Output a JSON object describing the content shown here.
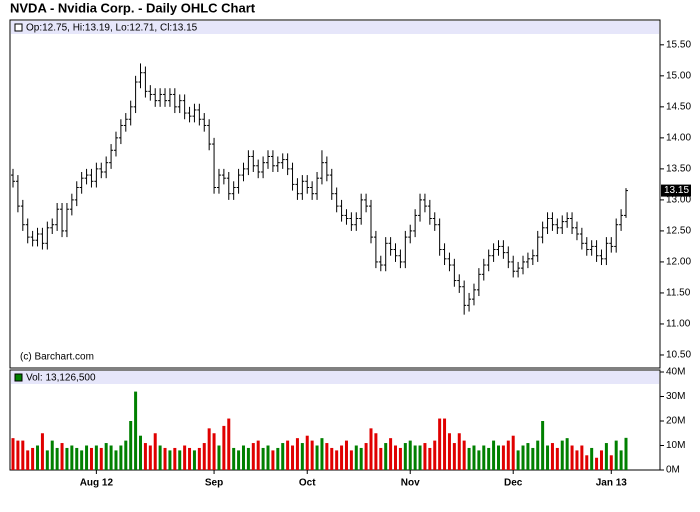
{
  "chart_data": {
    "type": "ohlc",
    "title": "NVDA - Nvidia Corp. - Daily OHLC Chart",
    "subtitle": "Op:12.75, Hi:13.19, Lo:12.71, Cl:13.15",
    "volume_label": "Vol: 13,126,500",
    "watermark": "(c) Barchart.com",
    "categories": [
      null,
      null,
      null,
      null,
      null,
      null,
      null,
      null,
      null,
      null,
      null,
      null,
      null,
      null,
      null,
      null,
      null,
      "Aug 12",
      null,
      null,
      null,
      null,
      null,
      null,
      null,
      null,
      null,
      null,
      null,
      null,
      null,
      null,
      null,
      null,
      null,
      null,
      null,
      null,
      null,
      null,
      null,
      "Sep",
      null,
      null,
      null,
      null,
      null,
      null,
      null,
      null,
      null,
      null,
      null,
      null,
      null,
      null,
      null,
      null,
      null,
      null,
      "Oct",
      null,
      null,
      null,
      null,
      null,
      null,
      null,
      null,
      null,
      null,
      null,
      null,
      null,
      null,
      null,
      null,
      null,
      null,
      null,
      null,
      "Nov",
      null,
      null,
      null,
      null,
      null,
      null,
      null,
      null,
      null,
      null,
      null,
      null,
      null,
      null,
      null,
      null,
      null,
      null,
      null,
      null,
      "Dec",
      null,
      null,
      null,
      null,
      null,
      null,
      null,
      null,
      null,
      null,
      null,
      null,
      null,
      null,
      null,
      null,
      null,
      null,
      null,
      "Jan 13",
      null,
      null,
      null
    ],
    "open": [
      13.4,
      13.3,
      12.9,
      12.6,
      12.4,
      12.35,
      12.45,
      12.3,
      12.55,
      12.6,
      12.85,
      12.5,
      12.85,
      13.0,
      13.2,
      13.35,
      13.4,
      13.3,
      13.5,
      13.45,
      13.6,
      13.8,
      14.0,
      14.2,
      14.3,
      14.5,
      14.9,
      15.05,
      14.75,
      14.7,
      14.6,
      14.7,
      14.6,
      14.7,
      14.5,
      14.6,
      14.4,
      14.35,
      14.45,
      14.3,
      14.2,
      13.9,
      13.2,
      13.4,
      13.35,
      13.1,
      13.2,
      13.4,
      13.5,
      13.7,
      13.55,
      13.45,
      13.6,
      13.7,
      13.55,
      13.6,
      13.65,
      13.5,
      13.25,
      13.1,
      13.3,
      13.2,
      13.1,
      13.35,
      13.6,
      13.4,
      13.1,
      12.9,
      12.75,
      12.7,
      12.6,
      12.7,
      13.0,
      12.9,
      12.4,
      12.0,
      11.95,
      12.3,
      12.2,
      12.1,
      12.0,
      12.4,
      12.5,
      12.75,
      13.0,
      12.9,
      12.7,
      12.6,
      12.2,
      12.05,
      11.95,
      11.7,
      11.6,
      11.3,
      11.4,
      11.55,
      11.8,
      11.95,
      12.1,
      12.2,
      12.25,
      12.15,
      12.0,
      11.85,
      11.9,
      12.0,
      12.05,
      12.1,
      12.4,
      12.55,
      12.7,
      12.6,
      12.55,
      12.65,
      12.7,
      12.55,
      12.45,
      12.3,
      12.2,
      12.25,
      12.1,
      12.05,
      12.3,
      12.25,
      12.6,
      12.75
    ],
    "high": [
      13.5,
      13.4,
      13.0,
      12.7,
      12.5,
      12.55,
      12.55,
      12.65,
      12.7,
      12.95,
      12.95,
      12.95,
      13.1,
      13.3,
      13.45,
      13.5,
      13.5,
      13.6,
      13.6,
      13.7,
      13.9,
      14.1,
      14.3,
      14.4,
      14.6,
      15.0,
      15.2,
      15.15,
      14.85,
      14.8,
      14.8,
      14.8,
      14.8,
      14.8,
      14.7,
      14.7,
      14.5,
      14.55,
      14.55,
      14.4,
      14.3,
      14.0,
      13.5,
      13.5,
      13.45,
      13.3,
      13.5,
      13.6,
      13.8,
      13.8,
      13.65,
      13.7,
      13.8,
      13.8,
      13.7,
      13.75,
      13.75,
      13.6,
      13.35,
      13.4,
      13.4,
      13.3,
      13.45,
      13.8,
      13.7,
      13.5,
      13.2,
      13.0,
      12.85,
      12.8,
      12.8,
      13.1,
      13.1,
      13.0,
      12.5,
      12.1,
      12.4,
      12.4,
      12.3,
      12.2,
      12.5,
      12.6,
      12.85,
      13.1,
      13.1,
      13.0,
      12.8,
      12.7,
      12.3,
      12.15,
      12.05,
      11.8,
      11.7,
      11.5,
      11.65,
      11.9,
      12.05,
      12.2,
      12.3,
      12.35,
      12.35,
      12.25,
      12.1,
      12.0,
      12.1,
      12.15,
      12.2,
      12.5,
      12.65,
      12.8,
      12.8,
      12.7,
      12.75,
      12.8,
      12.8,
      12.65,
      12.55,
      12.4,
      12.35,
      12.35,
      12.2,
      12.4,
      12.4,
      12.7,
      12.85,
      13.19
    ],
    "low": [
      13.2,
      12.8,
      12.5,
      12.3,
      12.25,
      12.25,
      12.2,
      12.2,
      12.45,
      12.5,
      12.4,
      12.4,
      12.75,
      12.9,
      13.1,
      13.25,
      13.2,
      13.2,
      13.35,
      13.35,
      13.5,
      13.7,
      13.9,
      14.1,
      14.2,
      14.4,
      14.8,
      14.65,
      14.6,
      14.5,
      14.5,
      14.5,
      14.5,
      14.4,
      14.4,
      14.3,
      14.25,
      14.25,
      14.2,
      14.1,
      13.8,
      13.1,
      13.1,
      13.25,
      13.0,
      13.0,
      13.1,
      13.3,
      13.4,
      13.45,
      13.35,
      13.35,
      13.5,
      13.45,
      13.45,
      13.5,
      13.4,
      13.15,
      13.0,
      13.0,
      13.1,
      13.0,
      13.0,
      13.25,
      13.3,
      13.0,
      12.8,
      12.65,
      12.6,
      12.5,
      12.5,
      12.6,
      12.8,
      12.3,
      11.9,
      11.85,
      11.85,
      12.1,
      12.0,
      11.9,
      11.9,
      12.3,
      12.4,
      12.65,
      12.8,
      12.6,
      12.5,
      12.1,
      11.95,
      11.85,
      11.6,
      11.5,
      11.15,
      11.2,
      11.3,
      11.45,
      11.7,
      11.85,
      12.0,
      12.1,
      12.05,
      11.9,
      11.75,
      11.75,
      11.8,
      11.9,
      11.95,
      12.0,
      12.3,
      12.45,
      12.5,
      12.45,
      12.45,
      12.55,
      12.45,
      12.35,
      12.2,
      12.1,
      12.1,
      12.0,
      11.95,
      11.95,
      12.15,
      12.15,
      12.5,
      12.71
    ],
    "close": [
      13.3,
      12.9,
      12.6,
      12.4,
      12.35,
      12.45,
      12.3,
      12.55,
      12.6,
      12.85,
      12.5,
      12.85,
      13.0,
      13.2,
      13.35,
      13.4,
      13.3,
      13.5,
      13.45,
      13.6,
      13.8,
      14.0,
      14.2,
      14.3,
      14.5,
      14.9,
      15.05,
      14.75,
      14.7,
      14.6,
      14.7,
      14.6,
      14.7,
      14.5,
      14.6,
      14.4,
      14.35,
      14.45,
      14.3,
      14.2,
      13.9,
      13.2,
      13.4,
      13.35,
      13.1,
      13.2,
      13.4,
      13.5,
      13.7,
      13.55,
      13.45,
      13.6,
      13.7,
      13.55,
      13.6,
      13.65,
      13.5,
      13.25,
      13.1,
      13.3,
      13.2,
      13.1,
      13.35,
      13.6,
      13.4,
      13.1,
      12.9,
      12.75,
      12.7,
      12.6,
      12.7,
      13.0,
      12.9,
      12.4,
      12.0,
      11.95,
      12.3,
      12.2,
      12.1,
      12.0,
      12.4,
      12.5,
      12.75,
      13.0,
      12.9,
      12.7,
      12.6,
      12.2,
      12.05,
      11.95,
      11.7,
      11.6,
      11.3,
      11.4,
      11.55,
      11.8,
      11.95,
      12.1,
      12.2,
      12.25,
      12.15,
      12.0,
      11.85,
      11.9,
      12.0,
      12.05,
      12.1,
      12.4,
      12.55,
      12.7,
      12.6,
      12.55,
      12.65,
      12.7,
      12.55,
      12.45,
      12.3,
      12.2,
      12.25,
      12.1,
      12.05,
      12.3,
      12.25,
      12.6,
      12.75,
      13.15
    ],
    "volume": [
      13,
      12,
      12,
      8,
      9,
      10,
      15,
      8,
      12,
      9,
      11,
      9,
      10,
      9,
      8,
      10,
      9,
      10,
      9,
      11,
      10,
      8,
      10,
      12,
      20,
      32,
      14,
      11,
      10,
      15,
      10,
      9,
      8,
      9,
      8,
      10,
      9,
      8,
      9,
      11,
      17,
      15,
      10,
      18,
      21,
      9,
      8,
      10,
      9,
      11,
      12,
      9,
      10,
      8,
      9,
      11,
      12,
      10,
      13,
      11,
      14,
      12,
      10,
      13,
      11,
      9,
      8,
      10,
      12,
      8,
      10,
      9,
      11,
      17,
      15,
      9,
      11,
      13,
      10,
      9,
      11,
      12,
      10,
      10,
      11,
      9,
      12,
      21,
      21,
      15,
      11,
      15,
      12,
      9,
      10,
      8,
      10,
      9,
      12,
      10,
      10,
      12,
      14,
      8,
      10,
      11,
      9,
      12,
      20,
      10,
      11,
      9,
      12,
      13,
      10,
      8,
      10,
      6,
      9,
      5,
      8,
      11,
      6,
      12,
      8,
      13.1265
    ],
    "bar_color": "#000000",
    "up_color": "#008000",
    "down_color": "#e00000",
    "ylim": [
      10.29,
      15.9
    ],
    "yticks": [
      {
        "value": 10.5,
        "label": "10.50"
      },
      {
        "value": 11,
        "label": "11.00"
      },
      {
        "value": 11.5,
        "label": "11.50"
      },
      {
        "value": 12,
        "label": "12.00"
      },
      {
        "value": 12.5,
        "label": "12.50"
      },
      {
        "value": 13,
        "label": "13.00"
      },
      {
        "value": 13.5,
        "label": "13.50"
      },
      {
        "value": 14,
        "label": "14.00"
      },
      {
        "value": 14.5,
        "label": "14.50"
      },
      {
        "value": 15,
        "label": "15.00"
      },
      {
        "value": 15.5,
        "label": "15.50"
      }
    ],
    "y2lim": [
      0,
      40
    ],
    "y2ticks": [
      {
        "value": 0,
        "label": "0M"
      },
      {
        "value": 10,
        "label": "10M"
      },
      {
        "value": 20,
        "label": "20M"
      },
      {
        "value": 30,
        "label": "30M"
      },
      {
        "value": 40,
        "label": "40M"
      }
    ],
    "grid": false
  }
}
